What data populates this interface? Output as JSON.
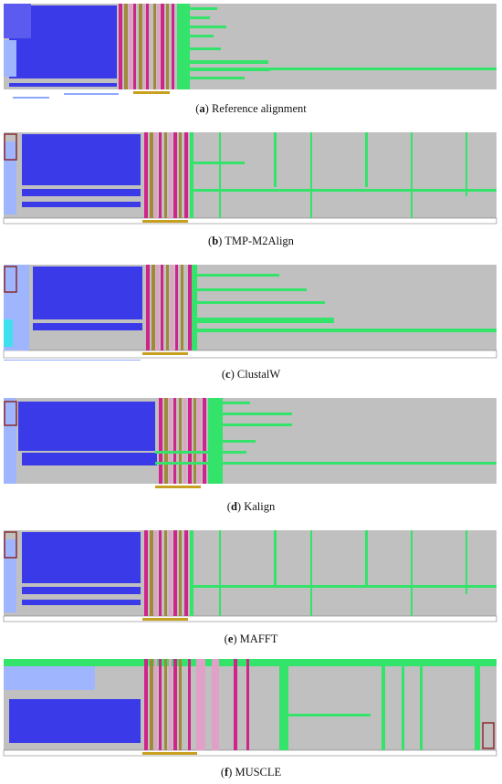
{
  "colors": {
    "background": "#c0c0c0",
    "blue": "#3a3ae8",
    "light_blue": "#9fb6ff",
    "cyan": "#3ee0ee",
    "green": "#33e36a",
    "magenta": "#d0248a",
    "pink": "#e0a0c8",
    "olive": "#a08a3a",
    "brown_box": "#8b2a2a"
  },
  "panels": [
    {
      "letter": "a",
      "method": "Reference alignment"
    },
    {
      "letter": "b",
      "method": "TMP-M2Align"
    },
    {
      "letter": "c",
      "method": "ClustalW"
    },
    {
      "letter": "d",
      "method": "Kalign"
    },
    {
      "letter": "e",
      "method": "MAFFT"
    },
    {
      "letter": "f",
      "method": "MUSCLE"
    }
  ]
}
